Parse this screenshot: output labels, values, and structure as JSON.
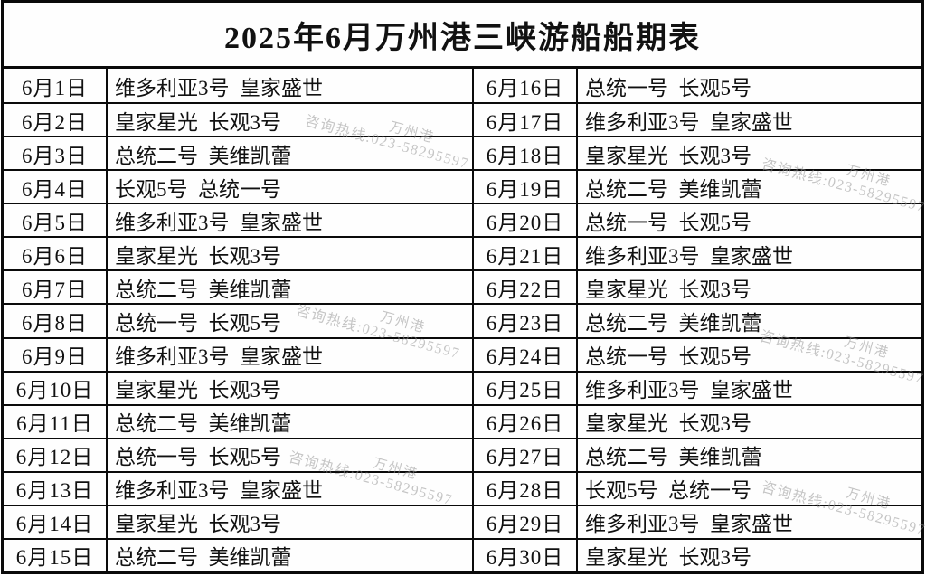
{
  "title": "2025年6月万州港三峡游船船期表",
  "watermark": {
    "port": "万州港",
    "hotline": "咨询热线:023-58295597"
  },
  "schedule": [
    {
      "date": "6月1日",
      "ships": [
        "维多利亚3号",
        "皇家盛世"
      ]
    },
    {
      "date": "6月2日",
      "ships": [
        "皇家星光",
        "长观3号"
      ]
    },
    {
      "date": "6月3日",
      "ships": [
        "总统二号",
        "美维凯蕾"
      ]
    },
    {
      "date": "6月4日",
      "ships": [
        "长观5号",
        "总统一号"
      ]
    },
    {
      "date": "6月5日",
      "ships": [
        "维多利亚3号",
        "皇家盛世"
      ]
    },
    {
      "date": "6月6日",
      "ships": [
        "皇家星光",
        "长观3号"
      ]
    },
    {
      "date": "6月7日",
      "ships": [
        "总统二号",
        "美维凯蕾"
      ]
    },
    {
      "date": "6月8日",
      "ships": [
        "总统一号",
        "长观5号"
      ]
    },
    {
      "date": "6月9日",
      "ships": [
        "维多利亚3号",
        "皇家盛世"
      ]
    },
    {
      "date": "6月10日",
      "ships": [
        "皇家星光",
        "长观3号"
      ]
    },
    {
      "date": "6月11日",
      "ships": [
        "总统二号",
        "美维凯蕾"
      ]
    },
    {
      "date": "6月12日",
      "ships": [
        "总统一号",
        "长观5号"
      ]
    },
    {
      "date": "6月13日",
      "ships": [
        "维多利亚3号",
        "皇家盛世"
      ]
    },
    {
      "date": "6月14日",
      "ships": [
        "皇家星光",
        "长观3号"
      ]
    },
    {
      "date": "6月15日",
      "ships": [
        "总统二号",
        "美维凯蕾"
      ]
    },
    {
      "date": "6月16日",
      "ships": [
        "总统一号",
        "长观5号"
      ]
    },
    {
      "date": "6月17日",
      "ships": [
        "维多利亚3号",
        "皇家盛世"
      ]
    },
    {
      "date": "6月18日",
      "ships": [
        "皇家星光",
        "长观3号"
      ]
    },
    {
      "date": "6月19日",
      "ships": [
        "总统二号",
        "美维凯蕾"
      ]
    },
    {
      "date": "6月20日",
      "ships": [
        "总统一号",
        "长观5号"
      ]
    },
    {
      "date": "6月21日",
      "ships": [
        "维多利亚3号",
        "皇家盛世"
      ]
    },
    {
      "date": "6月22日",
      "ships": [
        "皇家星光",
        "长观3号"
      ]
    },
    {
      "date": "6月23日",
      "ships": [
        "总统二号",
        "美维凯蕾"
      ]
    },
    {
      "date": "6月24日",
      "ships": [
        "总统一号",
        "长观5号"
      ]
    },
    {
      "date": "6月25日",
      "ships": [
        "维多利亚3号",
        "皇家盛世"
      ]
    },
    {
      "date": "6月26日",
      "ships": [
        "皇家星光",
        "长观3号"
      ]
    },
    {
      "date": "6月27日",
      "ships": [
        "总统二号",
        "美维凯蕾"
      ]
    },
    {
      "date": "6月28日",
      "ships": [
        "长观5号",
        "总统一号"
      ]
    },
    {
      "date": "6月29日",
      "ships": [
        "维多利亚3号",
        "皇家盛世"
      ]
    },
    {
      "date": "6月30日",
      "ships": [
        "皇家星光",
        "长观3号"
      ]
    }
  ]
}
